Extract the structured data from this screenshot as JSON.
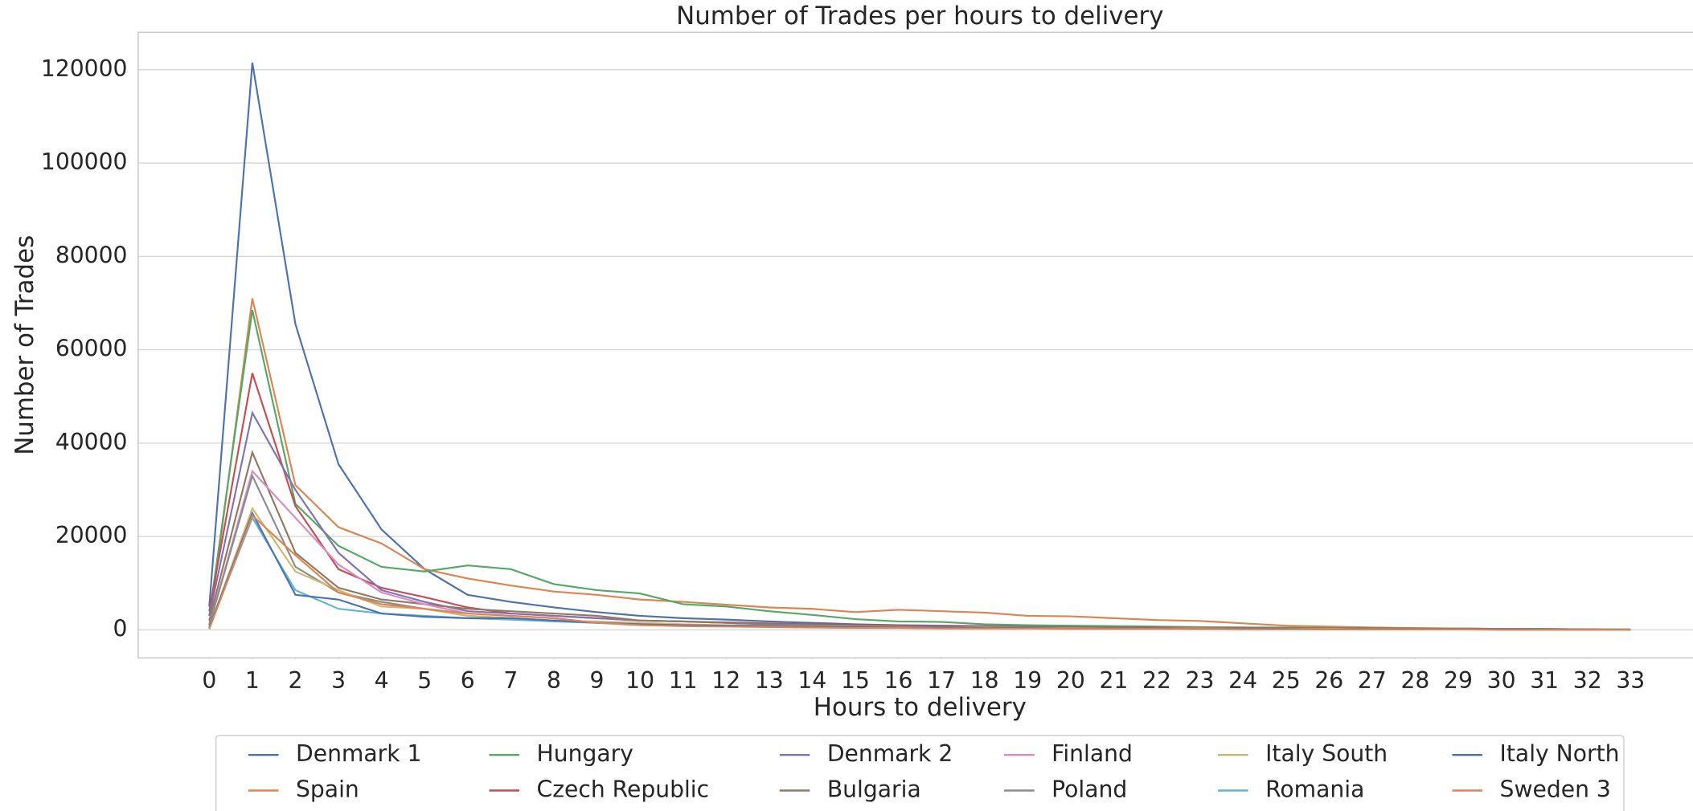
{
  "chart_data": {
    "type": "line",
    "title": "Number of Trades per hours to delivery",
    "x_label": "Hours to delivery",
    "y_label": "Number of Trades",
    "x": [
      0,
      1,
      2,
      3,
      4,
      5,
      6,
      7,
      8,
      9,
      10,
      11,
      12,
      13,
      14,
      15,
      16,
      17,
      18,
      19,
      20,
      21,
      22,
      23,
      24,
      25,
      26,
      27,
      28,
      29,
      30,
      31,
      32,
      33
    ],
    "xlim": [
      -1.65,
      34.45
    ],
    "xticks": [
      0,
      1,
      2,
      3,
      4,
      5,
      6,
      7,
      8,
      9,
      10,
      11,
      12,
      13,
      14,
      15,
      16,
      17,
      18,
      19,
      20,
      21,
      22,
      23,
      24,
      25,
      26,
      27,
      28,
      29,
      30,
      31,
      32,
      33
    ],
    "ylim": [
      -6000,
      128000
    ],
    "yticks": [
      0,
      20000,
      40000,
      60000,
      80000,
      100000,
      120000
    ],
    "grid": true,
    "legend": "bottom",
    "series": [
      {
        "name": "Denmark 1",
        "color": "#4c72b0",
        "values": [
          5000,
          121500,
          65500,
          35500,
          21500,
          13000,
          7500,
          6000,
          4800,
          3800,
          3000,
          2500,
          2200,
          1800,
          1500,
          1200,
          1000,
          900,
          800,
          700,
          700,
          600,
          600,
          500,
          500,
          400,
          400,
          300,
          300,
          300,
          200,
          200,
          100,
          100
        ]
      },
      {
        "name": "Spain",
        "color": "#dd8452",
        "values": [
          1000,
          71000,
          31000,
          22000,
          18500,
          13000,
          11000,
          9500,
          8200,
          7500,
          6500,
          6000,
          5400,
          4800,
          4500,
          3800,
          4300,
          4000,
          3700,
          3000,
          2900,
          2500,
          2100,
          1900,
          1400,
          900,
          700,
          500,
          400,
          300,
          200,
          100,
          100,
          0
        ]
      },
      {
        "name": "Hungary",
        "color": "#55a868",
        "values": [
          3000,
          68500,
          27000,
          18000,
          13500,
          12500,
          13800,
          13000,
          9800,
          8500,
          7800,
          5500,
          5000,
          4000,
          3200,
          2300,
          1800,
          1700,
          1200,
          1000,
          900,
          800,
          700,
          600,
          500,
          500,
          400,
          400,
          300,
          300,
          200,
          200,
          100,
          100
        ]
      },
      {
        "name": "Czech Republic",
        "color": "#c44e52",
        "values": [
          4000,
          55000,
          26500,
          13000,
          9000,
          7000,
          4800,
          3500,
          3000,
          2500,
          2000,
          1800,
          1600,
          1400,
          1200,
          1000,
          900,
          800,
          700,
          600,
          600,
          500,
          500,
          400,
          400,
          300,
          300,
          300,
          200,
          200,
          200,
          100,
          100,
          0
        ]
      },
      {
        "name": "Denmark 2",
        "color": "#8172b3",
        "values": [
          3000,
          46500,
          30000,
          16500,
          8500,
          6000,
          4000,
          3500,
          3000,
          2500,
          2000,
          1800,
          1500,
          1200,
          1000,
          800,
          700,
          600,
          500,
          500,
          400,
          400,
          300,
          300,
          300,
          200,
          200,
          200,
          100,
          100,
          100,
          100,
          0,
          0
        ]
      },
      {
        "name": "Bulgaria",
        "color": "#937860",
        "values": [
          2000,
          38000,
          16500,
          9000,
          6500,
          5500,
          4500,
          4000,
          3500,
          3000,
          2000,
          1800,
          1500,
          1200,
          1000,
          800,
          700,
          600,
          500,
          500,
          400,
          400,
          300,
          300,
          300,
          200,
          200,
          200,
          100,
          100,
          100,
          100,
          0,
          0
        ]
      },
      {
        "name": "Finland",
        "color": "#da8bc3",
        "values": [
          1000,
          34000,
          24000,
          14000,
          8000,
          5500,
          3500,
          3000,
          2500,
          1500,
          1200,
          1000,
          900,
          800,
          700,
          600,
          500,
          500,
          400,
          400,
          300,
          300,
          300,
          200,
          200,
          200,
          100,
          100,
          100,
          100,
          100,
          0,
          0,
          0
        ]
      },
      {
        "name": "Poland",
        "color": "#8c8c8c",
        "values": [
          1000,
          33000,
          13500,
          8000,
          6000,
          4500,
          3000,
          2500,
          2000,
          1500,
          1200,
          1000,
          900,
          800,
          700,
          600,
          500,
          500,
          400,
          400,
          300,
          300,
          300,
          200,
          200,
          200,
          100,
          100,
          100,
          100,
          100,
          0,
          0,
          0
        ]
      },
      {
        "name": "Italy South",
        "color": "#ccb974",
        "values": [
          500,
          26000,
          12500,
          8500,
          5000,
          4500,
          3000,
          2500,
          2000,
          1800,
          1500,
          1200,
          1000,
          900,
          800,
          700,
          600,
          500,
          500,
          400,
          400,
          300,
          300,
          300,
          200,
          200,
          200,
          100,
          100,
          100,
          100,
          0,
          0,
          0
        ]
      },
      {
        "name": "Romania",
        "color": "#64b5cd",
        "values": [
          500,
          24000,
          8500,
          4500,
          3500,
          3000,
          2500,
          2200,
          1800,
          1500,
          1200,
          1000,
          900,
          800,
          700,
          600,
          500,
          500,
          400,
          400,
          300,
          300,
          300,
          200,
          200,
          200,
          100,
          100,
          100,
          100,
          100,
          0,
          0,
          0
        ]
      },
      {
        "name": "Italy North",
        "color": "#4c72b0",
        "values": [
          500,
          25000,
          7500,
          6500,
          3500,
          2800,
          2500,
          2500,
          2000,
          1500,
          1200,
          1000,
          900,
          800,
          700,
          600,
          500,
          500,
          400,
          400,
          300,
          300,
          300,
          200,
          200,
          200,
          100,
          100,
          100,
          100,
          100,
          0,
          0,
          0
        ]
      },
      {
        "name": "Sweden 3",
        "color": "#dd8452",
        "values": [
          200,
          24500,
          16000,
          8000,
          5500,
          4500,
          3500,
          3000,
          2500,
          1500,
          1000,
          800,
          700,
          600,
          500,
          400,
          400,
          300,
          300,
          300,
          200,
          200,
          200,
          200,
          100,
          100,
          100,
          100,
          100,
          100,
          0,
          0,
          0,
          0
        ]
      }
    ]
  }
}
